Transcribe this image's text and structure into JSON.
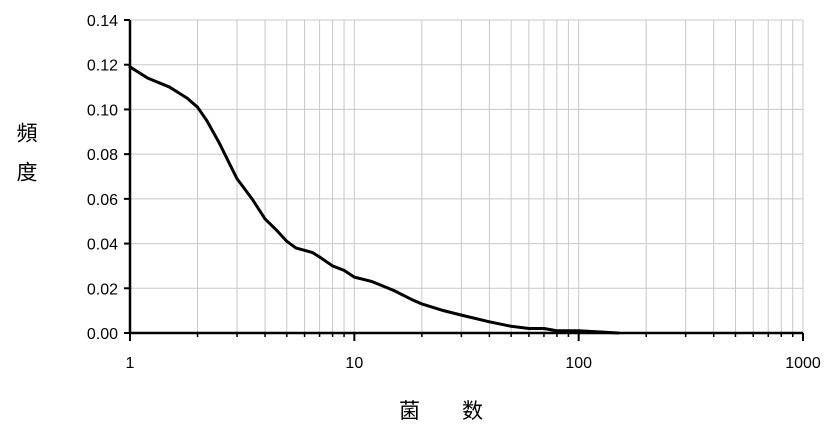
{
  "chart_data": {
    "type": "line",
    "title": "",
    "xlabel": "菌　　数",
    "ylabel": "頻度",
    "xscale": "log",
    "xlim": [
      1,
      1000
    ],
    "ylim": [
      0,
      0.14
    ],
    "grid": {
      "x_minor": true,
      "y_major": true
    },
    "legend": "none",
    "x_ticks": [
      1,
      10,
      100,
      1000
    ],
    "x_tick_labels": [
      "1",
      "10",
      "100",
      "1000"
    ],
    "y_ticks": [
      0,
      0.02,
      0.04,
      0.06,
      0.08,
      0.1,
      0.12,
      0.14
    ],
    "y_tick_labels": [
      "0.00",
      "0.02",
      "0.04",
      "0.06",
      "0.08",
      "0.10",
      "0.12",
      "0.14"
    ],
    "series": [
      {
        "color": "#000000",
        "x": [
          1,
          1.2,
          1.5,
          1.8,
          2,
          2.2,
          2.5,
          2.8,
          3,
          3.5,
          4,
          4.5,
          5,
          5.5,
          6,
          6.5,
          7,
          8,
          9,
          10,
          12,
          15,
          18,
          20,
          25,
          30,
          40,
          50,
          60,
          70,
          80,
          100,
          150
        ],
        "y": [
          0.119,
          0.114,
          0.11,
          0.105,
          0.101,
          0.095,
          0.085,
          0.075,
          0.069,
          0.06,
          0.051,
          0.046,
          0.041,
          0.038,
          0.037,
          0.036,
          0.034,
          0.03,
          0.028,
          0.025,
          0.023,
          0.019,
          0.015,
          0.013,
          0.01,
          0.008,
          0.005,
          0.003,
          0.002,
          0.002,
          0.001,
          0.001,
          0.0
        ]
      }
    ]
  }
}
